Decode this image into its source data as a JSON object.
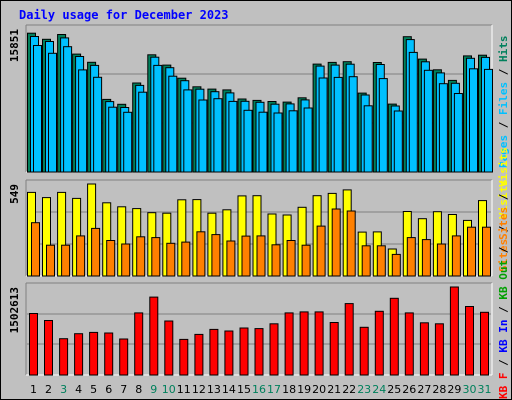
{
  "title": "Daily usage for December 2023",
  "chart_data": [
    {
      "type": "bar",
      "categories": [
        "1",
        "2",
        "3",
        "4",
        "5",
        "6",
        "7",
        "8",
        "9",
        "10",
        "11",
        "12",
        "13",
        "14",
        "15",
        "16",
        "17",
        "18",
        "19",
        "20",
        "21",
        "22",
        "23",
        "24",
        "25",
        "26",
        "27",
        "28",
        "29",
        "30",
        "31"
      ],
      "weekend_days": [
        "3",
        "9",
        "10",
        "16",
        "17",
        "23",
        "24",
        "30",
        "31"
      ],
      "ymax_label": "15851",
      "ymax": 15851,
      "series": [
        {
          "name": "Hits",
          "color": "#00805c",
          "values": [
            15390,
            14710,
            15240,
            13070,
            12160,
            8050,
            7500,
            9870,
            12990,
            11850,
            10400,
            9440,
            9190,
            9100,
            8090,
            7940,
            7820,
            7750,
            8230,
            11960,
            12150,
            12230,
            8750,
            12140,
            7530,
            15000,
            12520,
            11330,
            10150,
            12870,
            12950
          ]
        },
        {
          "name": "Files",
          "color": "#00c0ff",
          "values": [
            15020,
            14460,
            14860,
            12800,
            11820,
            7800,
            7150,
            9600,
            12720,
            11560,
            10120,
            9180,
            8900,
            8770,
            7840,
            7730,
            7520,
            7550,
            7990,
            11740,
            11850,
            11950,
            8530,
            11920,
            7320,
            14680,
            12220,
            10980,
            9830,
            12600,
            12700
          ]
        },
        {
          "name": "Pages",
          "color": "#00c0ff",
          "values": [
            14020,
            13160,
            13890,
            11320,
            10500,
            7180,
            6620,
            8850,
            11820,
            10620,
            9100,
            7980,
            8120,
            7830,
            6840,
            6630,
            6540,
            6780,
            7090,
            10420,
            10490,
            10560,
            7340,
            10350,
            6760,
            13260,
            11270,
            9790,
            8700,
            11440,
            11370
          ]
        }
      ],
      "legend_text": [
        "Pages",
        "Files",
        "Hits"
      ],
      "legend_colors": [
        "#00c0ff",
        "#00c0ff",
        "#00805c"
      ]
    },
    {
      "type": "bar",
      "categories": [
        "1",
        "2",
        "3",
        "4",
        "5",
        "6",
        "7",
        "8",
        "9",
        "10",
        "11",
        "12",
        "13",
        "14",
        "15",
        "16",
        "17",
        "18",
        "19",
        "20",
        "21",
        "22",
        "23",
        "24",
        "25",
        "26",
        "27",
        "28",
        "29",
        "30",
        "31"
      ],
      "ymax_label": "549",
      "ymax": 549,
      "series": [
        {
          "name": "Visits",
          "color": "#ffff00",
          "values": [
            499,
            468,
            499,
            463,
            549,
            437,
            413,
            402,
            378,
            375,
            455,
            456,
            375,
            395,
            478,
            479,
            370,
            364,
            410,
            479,
            493,
            514,
            262,
            263,
            161,
            385,
            342,
            384,
            367,
            332,
            450
          ]
        },
        {
          "name": "Sites",
          "color": "#ff8000",
          "values": [
            318,
            184,
            184,
            239,
            284,
            212,
            191,
            234,
            229,
            195,
            202,
            264,
            247,
            209,
            238,
            239,
            186,
            212,
            184,
            298,
            400,
            388,
            180,
            180,
            129,
            229,
            217,
            191,
            239,
            291,
            291
          ]
        }
      ],
      "legend_text": [
        "Visits",
        "Sites"
      ],
      "legend_colors": [
        "#ffff00",
        "#ff8000"
      ]
    },
    {
      "type": "bar",
      "categories": [
        "1",
        "2",
        "3",
        "4",
        "5",
        "6",
        "7",
        "8",
        "9",
        "10",
        "11",
        "12",
        "13",
        "14",
        "15",
        "16",
        "17",
        "18",
        "19",
        "20",
        "21",
        "22",
        "23",
        "24",
        "25",
        "26",
        "27",
        "28",
        "29",
        "30",
        "31"
      ],
      "ymax_label": "1502613",
      "ymax": 1502613,
      "series": [
        {
          "name": "KBytes F",
          "color": "#ff0000",
          "values": [
            1050000,
            931000,
            620000,
            705000,
            727000,
            718000,
            615000,
            1060000,
            1330000,
            922000,
            608000,
            694000,
            778000,
            751000,
            802000,
            793000,
            874000,
            1060000,
            1078000,
            1078000,
            897000,
            1220000,
            815000,
            1087000,
            1310000,
            1060000,
            892000,
            874000,
            1502613,
            1170000,
            1070000
          ]
        }
      ],
      "legend_text": [
        "KB F",
        "KB In",
        "KB Out",
        "Sites",
        "Visits"
      ]
    }
  ],
  "legend_colors": {
    "hits": "#00805c",
    "files": "#00c0ff",
    "pages": "#00c0ff",
    "visits": "#ffff00",
    "sites": "#ff8000",
    "kbytes": "#ff0000",
    "kbin": "#0000ff",
    "kbout": "#00a000"
  }
}
